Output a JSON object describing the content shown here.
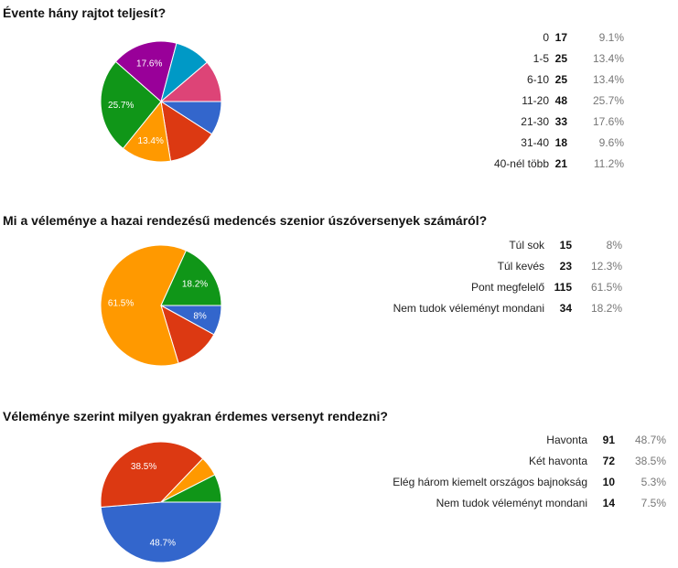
{
  "chart_data": [
    {
      "type": "pie",
      "title": "Évente hány rajtot teljesít?",
      "categories": [
        "0",
        "1-5",
        "6-10",
        "11-20",
        "21-30",
        "31-40",
        "40-nél több"
      ],
      "values": [
        17,
        25,
        25,
        48,
        33,
        18,
        21
      ],
      "percents": [
        "9.1%",
        "13.4%",
        "13.4%",
        "25.7%",
        "17.6%",
        "9.6%",
        "11.2%"
      ],
      "slice_labels": [
        "",
        "",
        "13.4%",
        "25.7%",
        "17.6%",
        "",
        ""
      ],
      "colors": [
        "#3366cc",
        "#dc3912",
        "#ff9900",
        "#109618",
        "#990099",
        "#0099c6",
        "#dd4477"
      ]
    },
    {
      "type": "pie",
      "title": "Mi a véleménye a hazai rendezésű medencés szenior úszóversenyek számáról?",
      "categories": [
        "Túl sok",
        "Túl kevés",
        "Pont megfelelő",
        "Nem tudok véleményt mondani"
      ],
      "values": [
        15,
        23,
        115,
        34
      ],
      "percents": [
        "8%",
        "12.3%",
        "61.5%",
        "18.2%"
      ],
      "slice_labels": [
        "8%",
        "",
        "61.5%",
        "18.2%"
      ],
      "colors": [
        "#3366cc",
        "#dc3912",
        "#ff9900",
        "#109618"
      ]
    },
    {
      "type": "pie",
      "title": "Véleménye szerint milyen gyakran érdemes versenyt rendezni?",
      "categories": [
        "Havonta",
        "Két havonta",
        "Elég három kiemelt országos bajnokság",
        "Nem tudok véleményt mondani"
      ],
      "values": [
        91,
        72,
        10,
        14
      ],
      "percents": [
        "48.7%",
        "38.5%",
        "5.3%",
        "7.5%"
      ],
      "slice_labels": [
        "48.7%",
        "38.5%",
        "",
        ""
      ],
      "colors": [
        "#3366cc",
        "#dc3912",
        "#ff9900",
        "#109618"
      ]
    }
  ]
}
